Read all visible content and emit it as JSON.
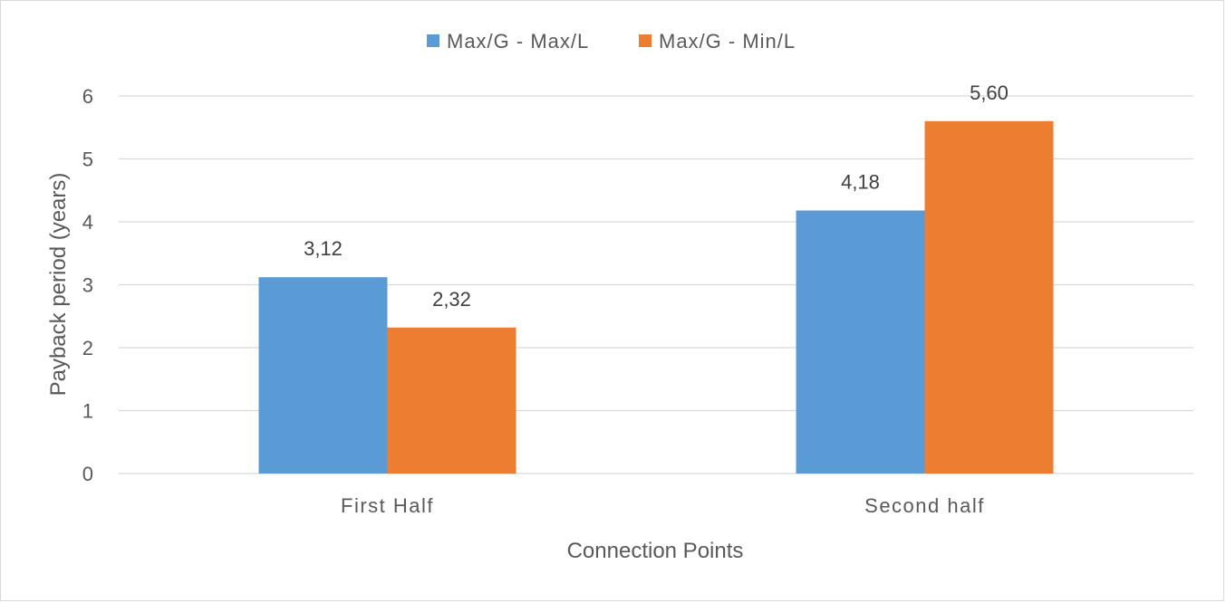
{
  "chart_data": {
    "type": "bar",
    "categories": [
      "First Half",
      "Second half"
    ],
    "series": [
      {
        "name": "Max/G - Max/L",
        "values": [
          3.12,
          4.18
        ],
        "labels": [
          "3,12",
          "4,18"
        ],
        "color": "#5b9bd5"
      },
      {
        "name": "Max/G - Min/L",
        "values": [
          2.32,
          5.6
        ],
        "labels": [
          "2,32",
          "5,60"
        ],
        "color": "#ed7d31"
      }
    ],
    "xlabel": "Connection Points",
    "ylabel": "Payback period (years)",
    "ylim": [
      0,
      6
    ],
    "yticks": [
      0,
      1,
      2,
      3,
      4,
      5,
      6
    ],
    "ytick_labels": [
      "0",
      "1",
      "2",
      "3",
      "4",
      "5",
      "6"
    ],
    "grid": true,
    "legend_position": "top",
    "gridline_color": "#d9d9d9"
  }
}
